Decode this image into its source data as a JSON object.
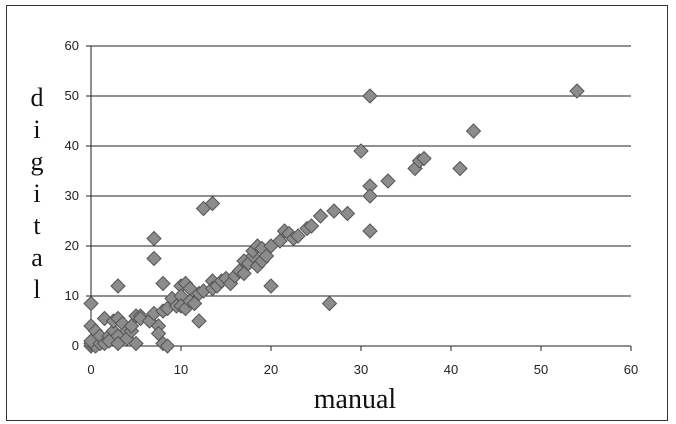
{
  "chart_data": {
    "type": "scatter",
    "xlabel": "manual",
    "ylabel": "digital",
    "xlim": [
      0,
      60
    ],
    "ylim": [
      0,
      60
    ],
    "xticks": [
      "0",
      "10",
      "20",
      "30",
      "40",
      "50",
      "60"
    ],
    "yticks": [
      "0",
      "10",
      "20",
      "30",
      "40",
      "50",
      "60"
    ],
    "grid": "horizontal",
    "marker_color": "#8c8c8c",
    "grid_color": "#222222",
    "points": [
      [
        0,
        0
      ],
      [
        0,
        0.5
      ],
      [
        0.5,
        0
      ],
      [
        0,
        1
      ],
      [
        1,
        0.5
      ],
      [
        0,
        8.5
      ],
      [
        0,
        4
      ],
      [
        0.5,
        3
      ],
      [
        1,
        2
      ],
      [
        1.5,
        5.5
      ],
      [
        1.5,
        0.5
      ],
      [
        2,
        2
      ],
      [
        2,
        1
      ],
      [
        2.5,
        3
      ],
      [
        2.5,
        5
      ],
      [
        3,
        12
      ],
      [
        3,
        5.5
      ],
      [
        3,
        2
      ],
      [
        3,
        0.5
      ],
      [
        3.5,
        4.5
      ],
      [
        4,
        3
      ],
      [
        4,
        1.5
      ],
      [
        4.5,
        3
      ],
      [
        4.5,
        4
      ],
      [
        5,
        6
      ],
      [
        5,
        0.5
      ],
      [
        5.5,
        6
      ],
      [
        5.5,
        5.5
      ],
      [
        6.5,
        5
      ],
      [
        7,
        21.5
      ],
      [
        7,
        17.5
      ],
      [
        7,
        6.5
      ],
      [
        7.5,
        4
      ],
      [
        7.5,
        2.5
      ],
      [
        8,
        12.5
      ],
      [
        8,
        7
      ],
      [
        8,
        0.5
      ],
      [
        8.5,
        0
      ],
      [
        8.5,
        7.5
      ],
      [
        9,
        9.5
      ],
      [
        9.5,
        8
      ],
      [
        10,
        12
      ],
      [
        10,
        10
      ],
      [
        10,
        8
      ],
      [
        10.5,
        12.5
      ],
      [
        10.5,
        7.5
      ],
      [
        11,
        11.5
      ],
      [
        11,
        9
      ],
      [
        11.5,
        8.5
      ],
      [
        12,
        5
      ],
      [
        12,
        10.5
      ],
      [
        12.5,
        27.5
      ],
      [
        12.5,
        11
      ],
      [
        13.5,
        13
      ],
      [
        13.5,
        11.5
      ],
      [
        13.5,
        28.5
      ],
      [
        14,
        12
      ],
      [
        14.5,
        13
      ],
      [
        15,
        13.5
      ],
      [
        15.5,
        12.5
      ],
      [
        16,
        14
      ],
      [
        16.5,
        15
      ],
      [
        17,
        17
      ],
      [
        17,
        14.5
      ],
      [
        17.5,
        16.5
      ],
      [
        18,
        18
      ],
      [
        18,
        19
      ],
      [
        18.5,
        16
      ],
      [
        18.5,
        20
      ],
      [
        19,
        19.5
      ],
      [
        19,
        17
      ],
      [
        19.5,
        18
      ],
      [
        20,
        20
      ],
      [
        20,
        12
      ],
      [
        21,
        21
      ],
      [
        21.5,
        23
      ],
      [
        22,
        22.5
      ],
      [
        22.5,
        21.5
      ],
      [
        23,
        22
      ],
      [
        24,
        23.5
      ],
      [
        24.5,
        24
      ],
      [
        25.5,
        26
      ],
      [
        26.5,
        8.5
      ],
      [
        27,
        27
      ],
      [
        28.5,
        26.5
      ],
      [
        30,
        39
      ],
      [
        31,
        32
      ],
      [
        31,
        30
      ],
      [
        31,
        23
      ],
      [
        31,
        50
      ],
      [
        33,
        33
      ],
      [
        36,
        35.5
      ],
      [
        36.5,
        37
      ],
      [
        37,
        37.5
      ],
      [
        41,
        35.5
      ],
      [
        42.5,
        43
      ],
      [
        54,
        51
      ]
    ]
  }
}
